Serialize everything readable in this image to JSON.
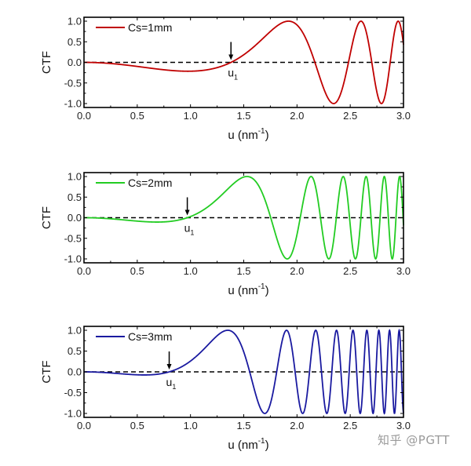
{
  "figure": {
    "watermark": "知乎 @PGTT"
  },
  "chart_data": [
    {
      "type": "line",
      "title": "",
      "xlabel": "u (nm⁻¹)",
      "xlabel_main": "u (nm",
      "xlabel_sup": "-1",
      "xlabel_close": ")",
      "ylabel": "CTF",
      "xlim": [
        0.0,
        3.0
      ],
      "ylim": [
        -1.0,
        1.0
      ],
      "xticks": [
        "0.0",
        "0.5",
        "1.0",
        "1.5",
        "2.0",
        "2.5",
        "3.0"
      ],
      "yticks": [
        "1.0",
        "0.5",
        "0.0",
        "-0.5",
        "-1.0"
      ],
      "grid": false,
      "legend_position": "upper-left",
      "series": [
        {
          "name": "Cs=1mm",
          "color": "#c00000",
          "model": {
            "a": 0.239,
            "u1": 1.38
          },
          "x": [
            0.0,
            0.5,
            0.98,
            1.38,
            1.92,
            2.15,
            2.33,
            2.47,
            2.58,
            2.68,
            2.78,
            2.86,
            2.93,
            3.0
          ],
          "values": [
            0.0,
            -0.1,
            -0.22,
            0.0,
            1.0,
            0.0,
            -1.0,
            0.0,
            1.0,
            0.0,
            -1.0,
            0.0,
            1.0,
            -0.1
          ]
        }
      ],
      "annotations": [
        {
          "text": "u",
          "sub": "1",
          "x": 1.38,
          "y": 0.0,
          "arrow": "down"
        }
      ],
      "reference_line": {
        "y": 0.0,
        "style": "dashed",
        "color": "#000000"
      }
    },
    {
      "type": "line",
      "title": "",
      "xlabel": "u (nm⁻¹)",
      "xlabel_main": "u (nm",
      "xlabel_sup": "-1",
      "xlabel_close": ")",
      "ylabel": "CTF",
      "xlim": [
        0.0,
        3.0
      ],
      "ylim": [
        -1.0,
        1.0
      ],
      "xticks": [
        "0.0",
        "0.5",
        "1.0",
        "1.5",
        "2.0",
        "2.5",
        "3.0"
      ],
      "yticks": [
        "1.0",
        "0.5",
        "0.0",
        "-0.5",
        "-1.0"
      ],
      "grid": false,
      "legend_position": "upper-left",
      "series": [
        {
          "name": "Cs=2mm",
          "color": "#22cc22",
          "model": {
            "a": 0.479,
            "u1": 0.97
          },
          "x": [
            0.0,
            0.69,
            0.97,
            1.53,
            1.75,
            1.9,
            2.02,
            2.12,
            2.29,
            2.42,
            2.53,
            2.63,
            2.72,
            2.8,
            2.87,
            2.94,
            3.0
          ],
          "values": [
            0.0,
            -0.12,
            0.0,
            1.0,
            0.0,
            -1.0,
            0.0,
            1.0,
            -1.0,
            1.0,
            -1.0,
            1.0,
            -1.0,
            1.0,
            -1.0,
            1.0,
            -0.3
          ]
        }
      ],
      "annotations": [
        {
          "text": "u",
          "sub": "1",
          "x": 0.97,
          "y": 0.0,
          "arrow": "down"
        }
      ],
      "reference_line": {
        "y": 0.0,
        "style": "dashed",
        "color": "#000000"
      }
    },
    {
      "type": "line",
      "title": "",
      "xlabel": "u (nm⁻¹)",
      "xlabel_main": "u (nm",
      "xlabel_sup": "-1",
      "xlabel_close": ")",
      "ylabel": "CTF",
      "xlim": [
        0.0,
        3.0
      ],
      "ylim": [
        -1.0,
        1.0
      ],
      "xticks": [
        "0.0",
        "0.5",
        "1.0",
        "1.5",
        "2.0",
        "2.5",
        "3.0"
      ],
      "yticks": [
        "1.0",
        "0.5",
        "0.0",
        "-0.5",
        "-1.0"
      ],
      "grid": false,
      "legend_position": "upper-left",
      "series": [
        {
          "name": "Cs=3mm",
          "color": "#1a1aa0",
          "model": {
            "a": 0.729,
            "u1": 0.8
          },
          "x": [
            0.0,
            0.57,
            0.8,
            1.35,
            1.55,
            1.69,
            1.8,
            1.89,
            2.05,
            2.17,
            2.28,
            2.37,
            2.45,
            2.53,
            2.6,
            2.67,
            2.73,
            2.79,
            2.85,
            2.9,
            2.95,
            3.0
          ],
          "values": [
            0.0,
            -0.08,
            0.0,
            1.0,
            0.0,
            -1.0,
            0.0,
            1.0,
            -1.0,
            1.0,
            -1.0,
            1.0,
            -1.0,
            1.0,
            -1.0,
            1.0,
            -1.0,
            1.0,
            -1.0,
            1.0,
            -1.0,
            0.5
          ]
        }
      ],
      "annotations": [
        {
          "text": "u",
          "sub": "1",
          "x": 0.8,
          "y": 0.0,
          "arrow": "down"
        }
      ],
      "reference_line": {
        "y": 0.0,
        "style": "dashed",
        "color": "#000000"
      }
    }
  ]
}
